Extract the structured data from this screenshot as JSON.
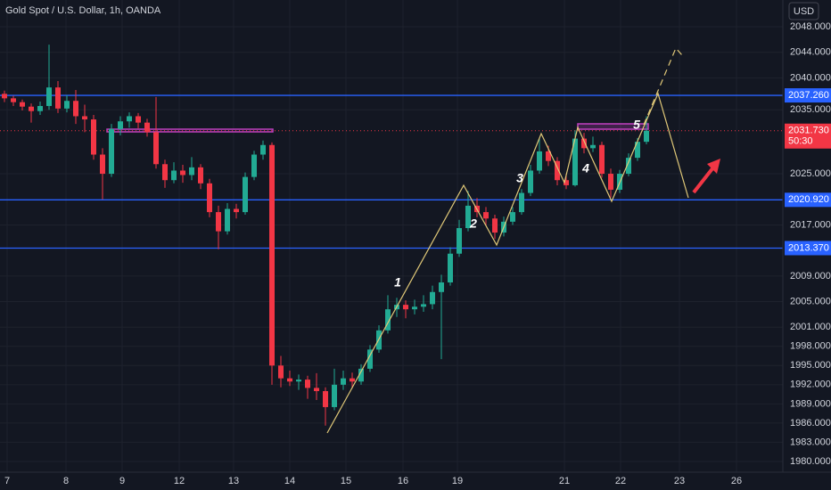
{
  "chart_data": {
    "type": "candlestick",
    "title": "Gold Spot / U.S. Dollar, 1h, OANDA",
    "currency": "USD",
    "up_color": "#22ab94",
    "down_color": "#f23645",
    "grid": true,
    "xlim": [
      -0.5,
      87.3
    ],
    "ylim": [
      1978.32,
      2052.18
    ],
    "xticks": [
      {
        "value": 0.3,
        "label": "7"
      },
      {
        "value": 6.9,
        "label": "8"
      },
      {
        "value": 13.2,
        "label": "9"
      },
      {
        "value": 19.6,
        "label": "12"
      },
      {
        "value": 25.7,
        "label": "13"
      },
      {
        "value": 32.0,
        "label": "14"
      },
      {
        "value": 38.3,
        "label": "15"
      },
      {
        "value": 44.7,
        "label": "16"
      },
      {
        "value": 50.8,
        "label": "19"
      },
      {
        "value": 62.8,
        "label": "21"
      },
      {
        "value": 69.1,
        "label": "22"
      },
      {
        "value": 75.7,
        "label": "23"
      },
      {
        "value": 82.1,
        "label": "26"
      }
    ],
    "yticks": [
      {
        "value": 2048,
        "label": "2048.000"
      },
      {
        "value": 2044,
        "label": "2044.000"
      },
      {
        "value": 2040,
        "label": "2040.000"
      },
      {
        "value": 2035,
        "label": "2035.000"
      },
      {
        "value": 2025,
        "label": "2025.000"
      },
      {
        "value": 2017,
        "label": "2017.000"
      },
      {
        "value": 2009,
        "label": "2009.000"
      },
      {
        "value": 2005,
        "label": "2005.000"
      },
      {
        "value": 2001,
        "label": "2001.000"
      },
      {
        "value": 1998,
        "label": "1998.000"
      },
      {
        "value": 1995,
        "label": "1995.000"
      },
      {
        "value": 1992,
        "label": "1992.000"
      },
      {
        "value": 1989,
        "label": "1989.000"
      },
      {
        "value": 1986,
        "label": "1986.000"
      },
      {
        "value": 1983,
        "label": "1983.000"
      },
      {
        "value": 1980,
        "label": "1980.000"
      }
    ],
    "levels": [
      {
        "value": 2037.26,
        "label": "2037.260",
        "color": "#2962ff"
      },
      {
        "value": 2020.92,
        "label": "2020.920",
        "color": "#2962ff"
      },
      {
        "value": 2013.37,
        "label": "2013.370",
        "color": "#2962ff"
      }
    ],
    "last_price": {
      "value": 2031.73,
      "label": "2031.730",
      "countdown": "50:30",
      "color": "#f23645"
    },
    "wave_labels": [
      "1",
      "2",
      "3",
      "4",
      "5"
    ],
    "x": [
      0,
      1,
      2,
      3,
      4,
      5,
      6,
      7,
      8,
      9,
      10,
      11,
      12,
      13,
      14,
      15,
      16,
      17,
      18,
      19,
      20,
      21,
      22,
      23,
      24,
      25,
      26,
      27,
      28,
      29,
      30,
      31,
      32,
      33,
      34,
      35,
      36,
      37,
      38,
      39,
      40,
      41,
      42,
      43,
      44,
      45,
      46,
      47,
      48,
      49,
      50,
      51,
      52,
      53,
      54,
      55,
      56,
      57,
      58,
      59,
      60,
      61,
      62,
      63,
      64,
      65,
      66,
      67,
      68,
      69,
      70,
      71,
      72
    ],
    "open": [
      2037.5,
      2036.8,
      2036.2,
      2035.5,
      2034.8,
      2035.6,
      2038.5,
      2035.2,
      2036.4,
      2034.0,
      2033.5,
      2028.0,
      2025.0,
      2032.0,
      2033.2,
      2034.0,
      2033.0,
      2031.5,
      2026.5,
      2024.0,
      2025.5,
      2024.8,
      2026.0,
      2023.5,
      2019.0,
      2016.0,
      2019.5,
      2019.0,
      2024.5,
      2028.0,
      2029.5,
      1995.0,
      1993.0,
      1992.5,
      1992.8,
      1991.5,
      1991.0,
      1988.5,
      1992.0,
      1993.0,
      1992.5,
      1994.5,
      1997.5,
      2000.5,
      2003.8,
      2004.5,
      2003.8,
      2004.2,
      2004.6,
      2006.5,
      2008.0,
      2012.5,
      2016.5,
      2020.0,
      2019.0,
      2018.0,
      2015.8,
      2017.5,
      2019.0,
      2022.0,
      2025.5,
      2028.5,
      2027.0,
      2024.0,
      2023.2,
      2030.5,
      2029.0,
      2029.5,
      2025.0,
      2022.5,
      2025.0,
      2027.5,
      2030.0
    ],
    "high": [
      2038.0,
      2037.2,
      2036.6,
      2036.0,
      2036.3,
      2045.2,
      2039.5,
      2037.3,
      2038.1,
      2035.8,
      2034.2,
      2029.0,
      2032.8,
      2034.0,
      2034.6,
      2034.5,
      2033.6,
      2037.0,
      2027.2,
      2026.8,
      2026.4,
      2027.6,
      2026.5,
      2024.2,
      2020.0,
      2020.4,
      2020.3,
      2025.2,
      2028.6,
      2030.2,
      2029.9,
      1996.5,
      1994.2,
      1993.6,
      1993.4,
      1993.8,
      1991.6,
      1994.5,
      1994.2,
      1993.9,
      1995.2,
      1998.2,
      2001.3,
      2006.0,
      2005.6,
      2005.2,
      2005.3,
      2006.0,
      2007.5,
      2009.2,
      2013.5,
      2017.8,
      2022.3,
      2021.2,
      2019.8,
      2018.6,
      2018.3,
      2019.8,
      2022.6,
      2026.4,
      2030.5,
      2029.4,
      2027.6,
      2025.0,
      2031.8,
      2031.4,
      2030.8,
      2030.0,
      2025.8,
      2025.6,
      2028.2,
      2030.6,
      2034.0
    ],
    "low": [
      2036.2,
      2035.6,
      2034.9,
      2033.0,
      2034.2,
      2035.0,
      2034.5,
      2034.6,
      2032.8,
      2031.5,
      2027.2,
      2021.0,
      2024.5,
      2031.0,
      2032.2,
      2032.1,
      2030.8,
      2025.8,
      2022.8,
      2023.5,
      2023.6,
      2024.0,
      2022.6,
      2018.2,
      2013.2,
      2015.5,
      2018.0,
      2018.6,
      2024.0,
      2027.2,
      1992.0,
      1991.6,
      1991.8,
      1991.2,
      1989.8,
      1989.6,
      1985.6,
      1988.0,
      1991.2,
      1991.4,
      1992.0,
      1994.0,
      1997.0,
      2000.0,
      2002.6,
      2002.4,
      2003.0,
      2003.4,
      2003.8,
      1996.0,
      2007.5,
      2012.0,
      2016.0,
      2018.2,
      2016.8,
      2014.8,
      2015.2,
      2017.0,
      2018.6,
      2021.5,
      2025.0,
      2026.2,
      2023.2,
      2022.6,
      2023.0,
      2028.2,
      2028.4,
      2024.4,
      2021.3,
      2022.0,
      2024.6,
      2027.0,
      2029.6
    ],
    "close": [
      2036.8,
      2036.2,
      2035.5,
      2034.8,
      2035.6,
      2038.5,
      2035.2,
      2036.4,
      2034.0,
      2033.5,
      2028.0,
      2025.0,
      2032.0,
      2033.2,
      2034.0,
      2033.0,
      2031.5,
      2026.5,
      2024.0,
      2025.5,
      2024.8,
      2026.0,
      2023.5,
      2019.0,
      2016.0,
      2019.5,
      2019.0,
      2024.5,
      2028.0,
      2029.5,
      1995.0,
      1993.0,
      1992.5,
      1992.8,
      1991.5,
      1991.0,
      1988.5,
      1992.0,
      1993.0,
      1992.5,
      1994.5,
      1997.5,
      2000.5,
      2003.8,
      2004.5,
      2003.8,
      2004.2,
      2004.6,
      2006.5,
      2008.0,
      2012.5,
      2016.5,
      2020.0,
      2019.0,
      2018.0,
      2015.8,
      2017.5,
      2019.0,
      2022.0,
      2025.5,
      2028.5,
      2027.0,
      2024.0,
      2023.2,
      2030.5,
      2029.0,
      2029.5,
      2025.0,
      2022.5,
      2025.0,
      2027.5,
      2030.0,
      2031.73
    ]
  }
}
